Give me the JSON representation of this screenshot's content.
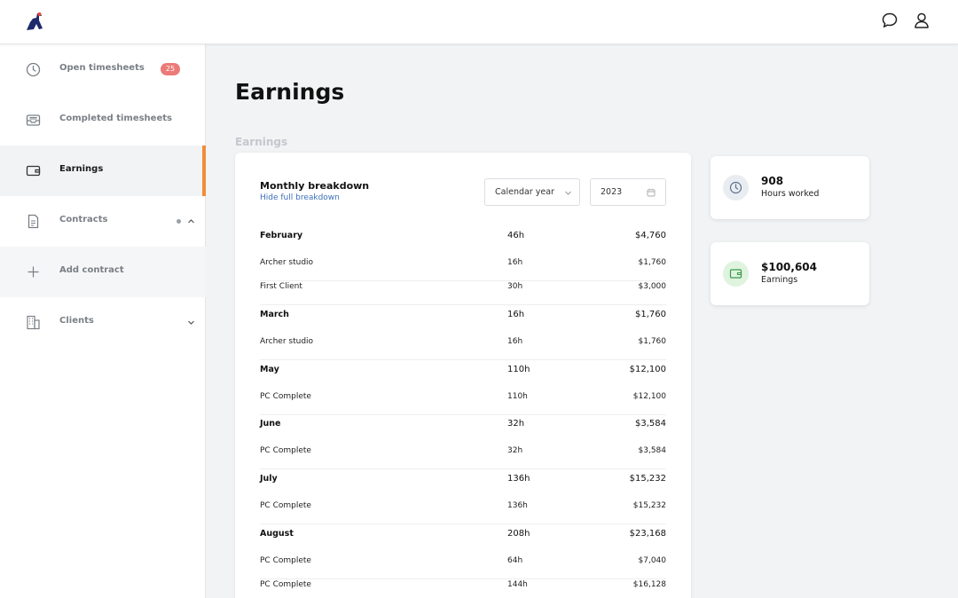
{
  "colors": {
    "accent": "#f28c38",
    "badge": "#ec7a78",
    "link": "#3d6fb8",
    "hours_icon_bg": "#e9edf2",
    "earnings_icon_bg": "#dff3df"
  },
  "header": {
    "logo_icon": "ostrich-logo-icon",
    "chat_icon": "chat-bubble-icon",
    "profile_icon": "user-icon"
  },
  "sidebar": {
    "items": [
      {
        "label": "Open timesheets",
        "icon": "clock-icon",
        "badge": "25"
      },
      {
        "label": "Completed timesheets",
        "icon": "inbox-icon"
      },
      {
        "label": "Earnings",
        "icon": "wallet-icon",
        "active": true
      },
      {
        "label": "Contracts",
        "icon": "document-icon",
        "expanded": true
      },
      {
        "label": "Add contract",
        "icon": "plus-icon"
      },
      {
        "label": "Clients",
        "icon": "building-icon",
        "expanded": false
      }
    ]
  },
  "main": {
    "title": "Earnings",
    "section_label": "Earnings",
    "breakdown": {
      "title": "Monthly breakdown",
      "toggle_link": "Hide full breakdown",
      "period_select": "Calendar year",
      "year": "2023",
      "months": [
        {
          "month": "February",
          "hours": "46h",
          "amount": "$4,760",
          "clients": [
            {
              "name": "Archer studio",
              "hours": "16h",
              "amount": "$1,760"
            },
            {
              "name": "First Client",
              "hours": "30h",
              "amount": "$3,000"
            }
          ]
        },
        {
          "month": "March",
          "hours": "16h",
          "amount": "$1,760",
          "clients": [
            {
              "name": "Archer studio",
              "hours": "16h",
              "amount": "$1,760"
            }
          ]
        },
        {
          "month": "May",
          "hours": "110h",
          "amount": "$12,100",
          "clients": [
            {
              "name": "PC Complete",
              "hours": "110h",
              "amount": "$12,100"
            }
          ]
        },
        {
          "month": "June",
          "hours": "32h",
          "amount": "$3,584",
          "clients": [
            {
              "name": "PC Complete",
              "hours": "32h",
              "amount": "$3,584"
            }
          ]
        },
        {
          "month": "July",
          "hours": "136h",
          "amount": "$15,232",
          "clients": [
            {
              "name": "PC Complete",
              "hours": "136h",
              "amount": "$15,232"
            }
          ]
        },
        {
          "month": "August",
          "hours": "208h",
          "amount": "$23,168",
          "clients": [
            {
              "name": "PC Complete",
              "hours": "64h",
              "amount": "$7,040"
            },
            {
              "name": "PC Complete",
              "hours": "144h",
              "amount": "$16,128"
            }
          ]
        }
      ]
    },
    "stats": [
      {
        "value": "908",
        "label": "Hours worked",
        "icon": "clock-icon"
      },
      {
        "value": "$100,604",
        "label": "Earnings",
        "icon": "wallet-icon"
      }
    ]
  }
}
